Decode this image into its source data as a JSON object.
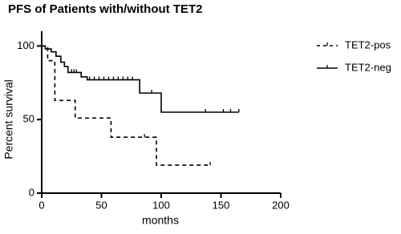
{
  "chart_data": {
    "type": "survival",
    "title": "PFS of Patients with/without TET2",
    "x_label": "months",
    "y_label": "Percent survival",
    "xlim": [
      0,
      200
    ],
    "ylim": [
      0,
      110
    ],
    "xticks": [
      0,
      50,
      100,
      150,
      200
    ],
    "yticks": [
      0,
      50,
      100
    ],
    "legend": "right",
    "series": [
      {
        "name": "TET2-pos",
        "color": "#000000",
        "dash": true,
        "x": [
          0,
          5,
          11,
          28,
          58,
          96
        ],
        "values": [
          100,
          90,
          63,
          51,
          38,
          19
        ],
        "censored": [
          86,
          141
        ]
      },
      {
        "name": "TET2-neg",
        "color": "#000000",
        "dash": false,
        "x": [
          0,
          3,
          8,
          12,
          16,
          19,
          22,
          33,
          38,
          82,
          100
        ],
        "values": [
          100,
          98,
          96,
          93,
          89,
          86,
          82,
          79,
          77,
          68,
          55
        ],
        "censored": [
          25,
          27,
          29,
          40,
          44,
          48,
          52,
          56,
          60,
          64,
          68,
          72,
          76,
          92,
          137,
          152,
          158,
          165
        ]
      }
    ]
  }
}
